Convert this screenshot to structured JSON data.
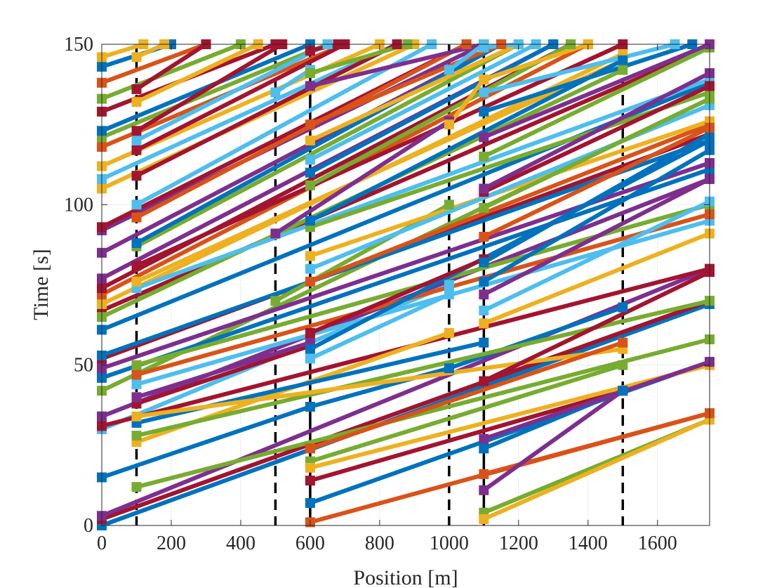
{
  "chart_data": {
    "type": "line",
    "title": "",
    "xlabel": "Position [m]",
    "ylabel": "Time [s]",
    "xlim": [
      0,
      1750
    ],
    "ylim": [
      0,
      150
    ],
    "xticks": [
      0,
      200,
      400,
      600,
      800,
      1000,
      1200,
      1400,
      1600
    ],
    "yticks": [
      0,
      50,
      100,
      150
    ],
    "grid": true,
    "legend": "none",
    "markers": "square",
    "vertical_lines": {
      "dashed": [
        100,
        500,
        1000,
        1500
      ],
      "solid": [
        600,
        1100
      ],
      "color": "#000000"
    },
    "palette": [
      "#0072BD",
      "#D95319",
      "#EDB120",
      "#7E2F8E",
      "#77AC30",
      "#4DBEEE",
      "#A2142F"
    ],
    "series": [
      {
        "color": "#0072BD",
        "x": [
          0,
          1750
        ],
        "y": [
          0,
          69
        ]
      },
      {
        "color": "#A2142F",
        "x": [
          0,
          1750
        ],
        "y": [
          2,
          70
        ]
      },
      {
        "color": "#7E2F8E",
        "x": [
          0,
          1750
        ],
        "y": [
          3,
          80
        ]
      },
      {
        "color": "#0072BD",
        "x": [
          0,
          600,
          1000,
          1500
        ],
        "y": [
          15,
          37,
          49,
          68
        ]
      },
      {
        "color": "#4DBEEE",
        "x": [
          0,
          1000
        ],
        "y": [
          30,
          75
        ]
      },
      {
        "color": "#A2142F",
        "x": [
          0,
          1750
        ],
        "y": [
          31,
          80
        ]
      },
      {
        "color": "#7E2F8E",
        "x": [
          0,
          1750
        ],
        "y": [
          34,
          108
        ]
      },
      {
        "color": "#77AC30",
        "x": [
          0,
          1750
        ],
        "y": [
          42,
          133
        ]
      },
      {
        "color": "#0072BD",
        "x": [
          0,
          1750
        ],
        "y": [
          46,
          111
        ]
      },
      {
        "color": "#7E2F8E",
        "x": [
          0,
          1750
        ],
        "y": [
          49,
          113
        ]
      },
      {
        "color": "#A2142F",
        "x": [
          0,
          1750
        ],
        "y": [
          52,
          122
        ]
      },
      {
        "color": "#0072BD",
        "x": [
          0,
          1750
        ],
        "y": [
          53,
          120
        ]
      },
      {
        "color": "#0072BD",
        "x": [
          0,
          1750
        ],
        "y": [
          61,
          138
        ]
      },
      {
        "color": "#A2142F",
        "x": [
          0,
          1750
        ],
        "y": [
          67,
          149
        ]
      },
      {
        "color": "#77AC30",
        "x": [
          0,
          1500
        ],
        "y": [
          65,
          142
        ]
      },
      {
        "color": "#EDB120",
        "x": [
          0,
          1500
        ],
        "y": [
          69,
          147
        ]
      },
      {
        "color": "#D95319",
        "x": [
          0,
          1400
        ],
        "y": [
          72,
          150
        ]
      },
      {
        "color": "#A2142F",
        "x": [
          0,
          1350
        ],
        "y": [
          74,
          150
        ]
      },
      {
        "color": "#7E2F8E",
        "x": [
          0,
          1300
        ],
        "y": [
          77,
          150
        ]
      },
      {
        "color": "#7E2F8E",
        "x": [
          0,
          1150
        ],
        "y": [
          85,
          150
        ]
      },
      {
        "color": "#7E2F8E",
        "x": [
          0,
          1100
        ],
        "y": [
          92,
          150
        ]
      },
      {
        "color": "#A2142F",
        "x": [
          0,
          1050
        ],
        "y": [
          93,
          150
        ]
      },
      {
        "color": "#EDB120",
        "x": [
          0,
          900
        ],
        "y": [
          105,
          150
        ]
      },
      {
        "color": "#4DBEEE",
        "x": [
          0,
          850
        ],
        "y": [
          108,
          150
        ]
      },
      {
        "color": "#EDB120",
        "x": [
          0,
          800
        ],
        "y": [
          112,
          150
        ]
      },
      {
        "color": "#D95319",
        "x": [
          0,
          700
        ],
        "y": [
          118,
          150
        ]
      },
      {
        "color": "#77AC30",
        "x": [
          0,
          650
        ],
        "y": [
          121,
          150
        ]
      },
      {
        "color": "#0072BD",
        "x": [
          0,
          600
        ],
        "y": [
          123,
          150
        ]
      },
      {
        "color": "#A2142F",
        "x": [
          0,
          500
        ],
        "y": [
          129,
          150
        ]
      },
      {
        "color": "#77AC30",
        "x": [
          0,
          400
        ],
        "y": [
          133,
          150
        ]
      },
      {
        "color": "#D95319",
        "x": [
          0,
          300
        ],
        "y": [
          138,
          150
        ]
      },
      {
        "color": "#0072BD",
        "x": [
          0,
          200
        ],
        "y": [
          143,
          150
        ]
      },
      {
        "color": "#EDB120",
        "x": [
          0,
          120
        ],
        "y": [
          146,
          150
        ]
      },
      {
        "color": "#77AC30",
        "x": [
          100,
          1750
        ],
        "y": [
          12,
          58
        ]
      },
      {
        "color": "#EDB120",
        "x": [
          100,
          1000
        ],
        "y": [
          26,
          60
        ]
      },
      {
        "color": "#77AC30",
        "x": [
          100,
          1750
        ],
        "y": [
          28,
          70
        ]
      },
      {
        "color": "#0072BD",
        "x": [
          100,
          1100
        ],
        "y": [
          32,
          57
        ]
      },
      {
        "color": "#EDB120",
        "x": [
          100,
          1500
        ],
        "y": [
          34,
          55
        ]
      },
      {
        "color": "#A2142F",
        "x": [
          100,
          600
        ],
        "y": [
          38,
          56
        ]
      },
      {
        "color": "#7E2F8E",
        "x": [
          100,
          600
        ],
        "y": [
          40,
          57
        ]
      },
      {
        "color": "#4DBEEE",
        "x": [
          100,
          1750
        ],
        "y": [
          44,
          95
        ]
      },
      {
        "color": "#D95319",
        "x": [
          100,
          1750
        ],
        "y": [
          47,
          97
        ]
      },
      {
        "color": "#77AC30",
        "x": [
          100,
          1750
        ],
        "y": [
          50,
          100
        ]
      },
      {
        "color": "#4DBEEE",
        "x": [
          100,
          1750
        ],
        "y": [
          74,
          139
        ]
      },
      {
        "color": "#EDB120",
        "x": [
          100,
          1500
        ],
        "y": [
          76,
          145
        ]
      },
      {
        "color": "#A2142F",
        "x": [
          100,
          1500
        ],
        "y": [
          81,
          150
        ]
      },
      {
        "color": "#77AC30",
        "x": [
          100,
          1200
        ],
        "y": [
          87,
          150
        ]
      },
      {
        "color": "#0072BD",
        "x": [
          100,
          1150
        ],
        "y": [
          88,
          150
        ]
      },
      {
        "color": "#D95319",
        "x": [
          100,
          1050
        ],
        "y": [
          96,
          150
        ]
      },
      {
        "color": "#4DBEEE",
        "x": [
          100,
          950
        ],
        "y": [
          100,
          150
        ]
      },
      {
        "color": "#A2142F",
        "x": [
          100,
          850
        ],
        "y": [
          109,
          150
        ]
      },
      {
        "color": "#A2142F",
        "x": [
          100,
          700
        ],
        "y": [
          117,
          150
        ]
      },
      {
        "color": "#4DBEEE",
        "x": [
          100,
          650
        ],
        "y": [
          120,
          150
        ]
      },
      {
        "color": "#A2142F",
        "x": [
          100,
          520
        ],
        "y": [
          123,
          150
        ]
      },
      {
        "color": "#EDB120",
        "x": [
          100,
          450
        ],
        "y": [
          132,
          150
        ]
      },
      {
        "color": "#A2142F",
        "x": [
          100,
          300
        ],
        "y": [
          136,
          150
        ]
      },
      {
        "color": "#EDB120",
        "x": [
          100,
          180
        ],
        "y": [
          146,
          150
        ]
      },
      {
        "color": "#77AC30",
        "x": [
          500,
          1000
        ],
        "y": [
          70,
          100
        ]
      },
      {
        "color": "#7E2F8E",
        "x": [
          500,
          1000
        ],
        "y": [
          91,
          126
        ]
      },
      {
        "color": "#4DBEEE",
        "x": [
          500,
          600
        ],
        "y": [
          135,
          142
        ]
      },
      {
        "color": "#D95319",
        "x": [
          600,
          1750
        ],
        "y": [
          1,
          35
        ]
      },
      {
        "color": "#0072BD",
        "x": [
          600,
          1750
        ],
        "y": [
          7,
          51
        ]
      },
      {
        "color": "#A2142F",
        "x": [
          600,
          1500
        ],
        "y": [
          14,
          42
        ]
      },
      {
        "color": "#77AC30",
        "x": [
          600,
          1500
        ],
        "y": [
          20,
          50
        ]
      },
      {
        "color": "#D95319",
        "x": [
          600,
          1500
        ],
        "y": [
          24,
          57
        ]
      },
      {
        "color": "#EDB120",
        "x": [
          600,
          1750
        ],
        "y": [
          18,
          50
        ]
      },
      {
        "color": "#0072BD",
        "x": [
          600,
          1750
        ],
        "y": [
          55,
          120
        ]
      },
      {
        "color": "#4DBEEE",
        "x": [
          600,
          1000
        ],
        "y": [
          52,
          72
        ]
      },
      {
        "color": "#A2142F",
        "x": [
          600,
          1100
        ],
        "y": [
          60,
          83
        ]
      },
      {
        "color": "#D95319",
        "x": [
          600,
          1750
        ],
        "y": [
          76,
          125
        ]
      },
      {
        "color": "#EDB120",
        "x": [
          600,
          1750
        ],
        "y": [
          84,
          126
        ]
      },
      {
        "color": "#4DBEEE",
        "x": [
          600,
          1750
        ],
        "y": [
          80,
          131
        ]
      },
      {
        "color": "#77AC30",
        "x": [
          600,
          1750
        ],
        "y": [
          93,
          135
        ]
      },
      {
        "color": "#0072BD",
        "x": [
          600,
          1500
        ],
        "y": [
          95,
          145
        ]
      },
      {
        "color": "#77AC30",
        "x": [
          600,
          1350
        ],
        "y": [
          106,
          150
        ]
      },
      {
        "color": "#0072BD",
        "x": [
          600,
          1300
        ],
        "y": [
          110,
          150
        ]
      },
      {
        "color": "#4DBEEE",
        "x": [
          600,
          1250
        ],
        "y": [
          114,
          150
        ]
      },
      {
        "color": "#EDB120",
        "x": [
          600,
          1200
        ],
        "y": [
          120,
          150
        ]
      },
      {
        "color": "#D95319",
        "x": [
          600,
          1150
        ],
        "y": [
          125,
          150
        ]
      },
      {
        "color": "#7E2F8E",
        "x": [
          600,
          1100
        ],
        "y": [
          137,
          150
        ]
      },
      {
        "color": "#77AC30",
        "x": [
          600,
          880
        ],
        "y": [
          141,
          150
        ]
      },
      {
        "color": "#A2142F",
        "x": [
          600,
          680
        ],
        "y": [
          148,
          150
        ]
      },
      {
        "color": "#EDB120",
        "x": [
          1000,
          1100
        ],
        "y": [
          125,
          139
        ]
      },
      {
        "color": "#4DBEEE",
        "x": [
          1000,
          1100
        ],
        "y": [
          142,
          150
        ]
      },
      {
        "color": "#77AC30",
        "x": [
          1100,
          1750
        ],
        "y": [
          4,
          33
        ]
      },
      {
        "color": "#EDB120",
        "x": [
          1100,
          1750
        ],
        "y": [
          2,
          33
        ]
      },
      {
        "color": "#D95319",
        "x": [
          1100,
          1750
        ],
        "y": [
          16,
          35
        ]
      },
      {
        "color": "#7E2F8E",
        "x": [
          1100,
          1500
        ],
        "y": [
          11,
          42
        ]
      },
      {
        "color": "#0072BD",
        "x": [
          1100,
          1500
        ],
        "y": [
          24,
          42
        ]
      },
      {
        "color": "#7E2F8E",
        "x": [
          1100,
          1750
        ],
        "y": [
          27,
          51
        ]
      },
      {
        "color": "#A2142F",
        "x": [
          1100,
          1750
        ],
        "y": [
          45,
          79
        ]
      },
      {
        "color": "#EDB120",
        "x": [
          1100,
          1750
        ],
        "y": [
          63,
          91
        ]
      },
      {
        "color": "#4DBEEE",
        "x": [
          1100,
          1750
        ],
        "y": [
          67,
          101
        ]
      },
      {
        "color": "#7E2F8E",
        "x": [
          1100,
          1750
        ],
        "y": [
          72,
          108
        ]
      },
      {
        "color": "#0072BD",
        "x": [
          1100,
          1750
        ],
        "y": [
          76,
          117
        ]
      },
      {
        "color": "#0072BD",
        "x": [
          1100,
          1750
        ],
        "y": [
          82,
          122
        ]
      },
      {
        "color": "#D95319",
        "x": [
          1100,
          1750
        ],
        "y": [
          90,
          124
        ]
      },
      {
        "color": "#77AC30",
        "x": [
          1100,
          1750
        ],
        "y": [
          99,
          133
        ]
      },
      {
        "color": "#A2142F",
        "x": [
          1100,
          1750
        ],
        "y": [
          104,
          137
        ]
      },
      {
        "color": "#7E2F8E",
        "x": [
          1100,
          1750
        ],
        "y": [
          105,
          141
        ]
      },
      {
        "color": "#77AC30",
        "x": [
          1100,
          1750
        ],
        "y": [
          115,
          149
        ]
      },
      {
        "color": "#7E2F8E",
        "x": [
          1100,
          1750
        ],
        "y": [
          121,
          150
        ]
      },
      {
        "color": "#0072BD",
        "x": [
          1100,
          1700
        ],
        "y": [
          129,
          150
        ]
      },
      {
        "color": "#4DBEEE",
        "x": [
          1100,
          1650
        ],
        "y": [
          135,
          150
        ]
      },
      {
        "color": "#EDB120",
        "x": [
          1100,
          1400
        ],
        "y": [
          139,
          150
        ]
      },
      {
        "color": "#4DBEEE",
        "x": [
          1100,
          1200
        ],
        "y": [
          149,
          150
        ]
      }
    ]
  }
}
